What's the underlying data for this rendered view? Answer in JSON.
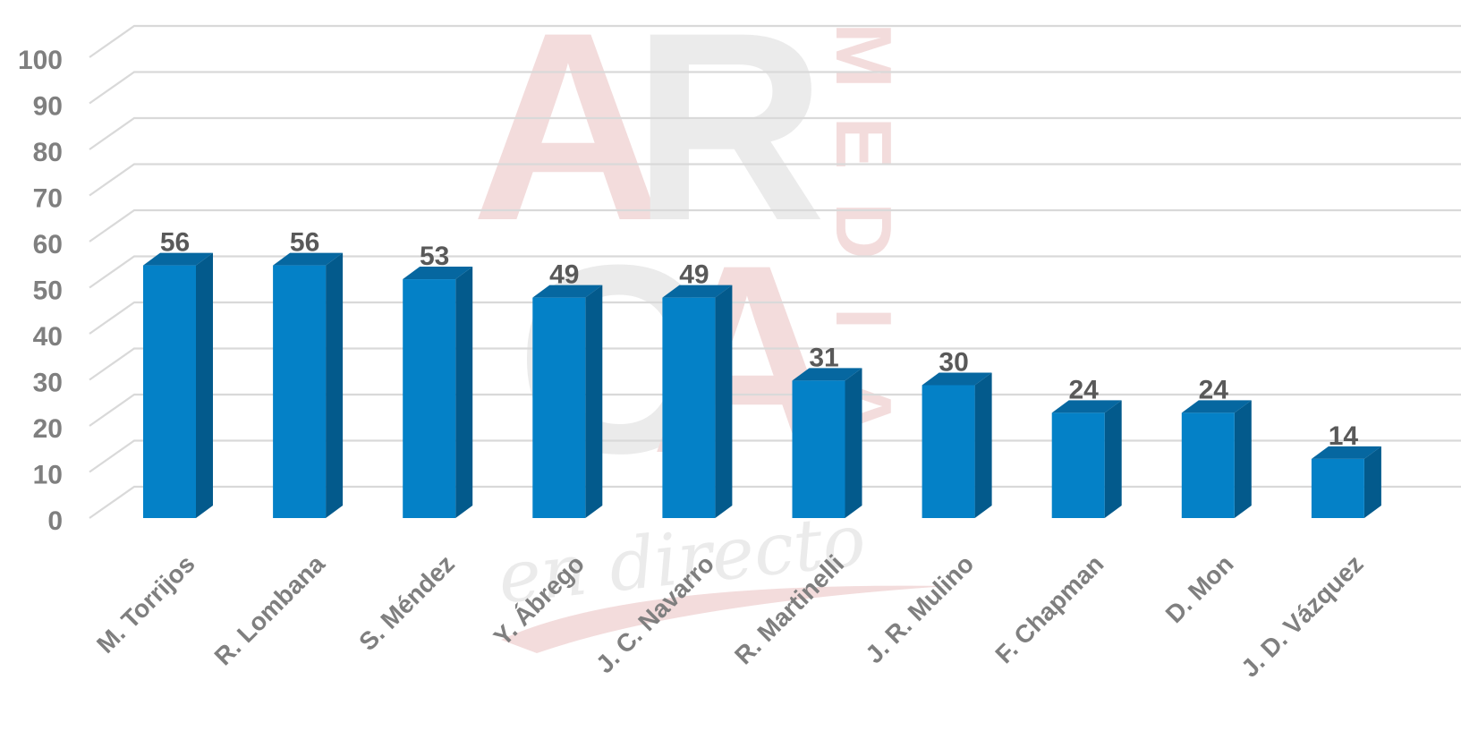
{
  "chart_data": {
    "type": "bar",
    "style": "3d-column",
    "categories": [
      "M. Torrijos",
      "R. Lombana",
      "S. Méndez",
      "Y. Ábrego",
      "J. C. Navarro",
      "R. Martinelli",
      "J. R. Mulino",
      "F. Chapman",
      "D. Mon",
      "J. D. Vázquez"
    ],
    "values": [
      56,
      56,
      53,
      49,
      49,
      31,
      30,
      24,
      24,
      14
    ],
    "ylim": [
      0,
      100
    ],
    "yticks": [
      0,
      10,
      20,
      30,
      40,
      50,
      60,
      70,
      80,
      90,
      100
    ],
    "grid": true,
    "data_labels": true,
    "colors": {
      "bar_front": "#0481C7",
      "bar_side": "#035A8C",
      "bar_top": "#0667A0"
    }
  },
  "watermark": {
    "letters": [
      "A",
      "R",
      "C",
      "A"
    ],
    "vertical_word": "MEDIA",
    "script": "en directo",
    "colors": {
      "red": "#F3DCDC",
      "gray": "#EBEBEB"
    }
  }
}
